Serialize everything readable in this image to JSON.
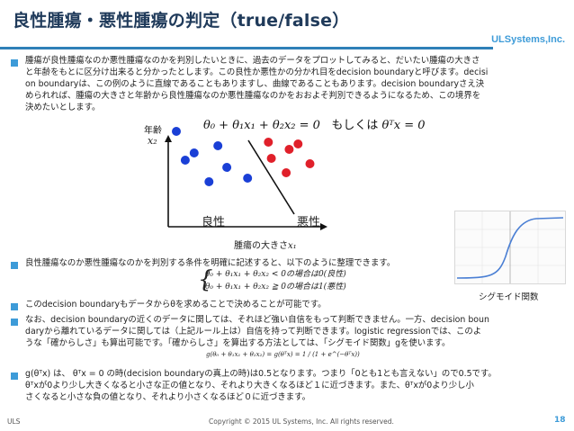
{
  "header": {
    "title": "良性腫瘍・悪性腫瘍の判定（true/false）",
    "brand": "ULSystems,Inc."
  },
  "p1": {
    "l1": "腫瘍が良性腫瘍なのか悪性腫瘍なのかを判別したいときに、過去のデータをプロットしてみると、だいたい腫瘍の大きさ",
    "l2": "と年齢をもとに区分け出来ると分かったとします。この良性か悪性かの分かれ目をdecision boundaryと呼びます。decisi",
    "l3": "on boundaryは、この例のように直線であることもありますし、曲線であることもあります。decision boundaryさえ決",
    "l4": "められれば、腫瘍の大きさと年齢から良性腫瘍なのか悪性腫瘍なのかをおおよそ判別できるようになるため、この境界を",
    "l5": "決めたいとします。"
  },
  "figure": {
    "formula": "θ₀ + θ₁x₁ + θ₂x₂ = 0",
    "or_text": "もしくは",
    "formula2": "θᵀx = 0",
    "y_label": "年齢",
    "y_var": "x₂",
    "x_label": "腫瘍の大きさ",
    "x_var": "x₁",
    "benign": "良性",
    "malignant": "悪性",
    "benign_color": "#1a3fd6",
    "malignant_color": "#e0202a",
    "blue_points": [
      [
        -1.0,
        1.2
      ],
      [
        -0.3,
        0.8
      ],
      [
        -0.7,
        0.6
      ],
      [
        -0.85,
        0.4
      ],
      [
        -0.15,
        0.2
      ],
      [
        -0.45,
        -0.2
      ],
      [
        0.2,
        -0.1
      ]
    ],
    "red_points": [
      [
        0.55,
        0.9
      ],
      [
        1.05,
        0.85
      ],
      [
        0.9,
        0.7
      ],
      [
        0.6,
        0.45
      ],
      [
        1.25,
        0.3
      ],
      [
        0.85,
        0.05
      ]
    ]
  },
  "p2": {
    "l1": "良性腫瘍なのか悪性腫瘍なのかを判別する条件を明確に記述すると、以下のように整理できます。",
    "case1": "θ₀ + θ₁x₁ + θ₂x₂ < 0の場合は0(良性)",
    "case2": "θ₀ + θ₁x₁ + θ₂x₂ ≧ 0の場合は1(悪性)"
  },
  "sigmoid": {
    "caption": "シグモイド関数"
  },
  "p3": {
    "l1": "このdecision boundaryもデータからθを求めることで決めることが可能です。"
  },
  "p4": {
    "l1": "なお、decision boundaryの近くのデータに関しては、それほど強い自信をもって判断できません。一方、decision boun",
    "l2": "daryから離れているデータに関しては（上記ルール上は）自信を持って判断できます。logistic regressionでは、このよ",
    "l3": "うな「確からしさ」も算出可能です。「確からしさ」を算出する方法としては、「シグモイド関数」gを使います。",
    "formula": "g(θ₀ + θ₁x₁ + θ₂x₂) = g(θᵀx) = 1 / (1 + e^(−θᵀx))"
  },
  "p5": {
    "l1": "g(θᵀx) は、 θᵀx = 0 の時(decision boundaryの真上の時)は0.5となります。つまり「0とも1とも言えない」ので0.5です。",
    "l2": "θᵀxが0より少し大きくなると小さな正の値となり、それより大きくなるほど１に近づきます。また、θᵀxが0より少し小",
    "l3": "さくなると小さな負の値となり、それより小さくなるほど０に近づきます。"
  },
  "footer": {
    "left": "ULS",
    "copyright": "Copyright © 2015 UL Systems, Inc.  All rights reserved.",
    "page": "18"
  }
}
